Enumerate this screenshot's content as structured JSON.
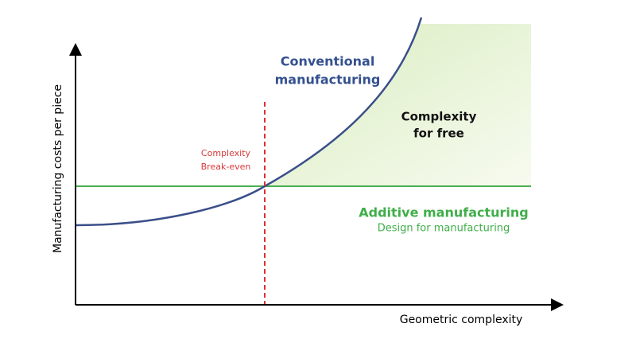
{
  "x_axis_label": "Geometric complexity",
  "y_axis_label": "Manufacturing costs per piece",
  "conventional_label": [
    "Conventional",
    "manufacturing"
  ],
  "free_label": [
    "Complexity",
    "for free"
  ],
  "break_even_label": [
    "Complexity",
    "Break-even"
  ],
  "additive_label": "Additive manufacturing",
  "additive_sublabel": "Design for manufacturing"
}
